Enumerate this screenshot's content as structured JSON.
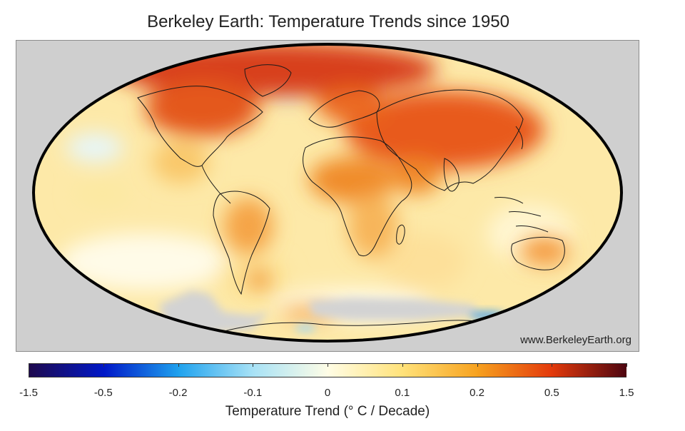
{
  "title": "Berkeley Earth: Temperature Trends since 1950",
  "credit": "www.BerkeleyEarth.org",
  "colorbar": {
    "label": "Temperature Trend (° C / Decade)",
    "ticks": [
      "-1.5",
      "-0.5",
      "-0.2",
      "-0.1",
      "0",
      "0.1",
      "0.2",
      "0.5",
      "1.5"
    ],
    "segments": [
      {
        "from": "#1e0a4e",
        "to": "#0018c8"
      },
      {
        "from": "#0018c8",
        "to": "#1fa2ee"
      },
      {
        "from": "#1fa2ee",
        "to": "#a8e2f6"
      },
      {
        "from": "#a8e2f6",
        "to": "#fffde6"
      },
      {
        "from": "#fffde6",
        "to": "#ffe27a"
      },
      {
        "from": "#ffe27a",
        "to": "#f7a21f"
      },
      {
        "from": "#f7a21f",
        "to": "#e33a0c"
      },
      {
        "from": "#e33a0c",
        "to": "#4d0510"
      }
    ]
  },
  "map": {
    "projection": "Mollweide",
    "ocean_fill": "#fde9a8",
    "missing_data_color": "#d3d3d3",
    "warming_regions": [
      {
        "name": "Arctic / Greenland",
        "color": "#d8401a"
      },
      {
        "name": "Northern Eurasia",
        "color": "#e35a1a"
      },
      {
        "name": "Sahara / Arabia",
        "color": "#f08c2c"
      },
      {
        "name": "Central South America",
        "color": "#f5a447"
      },
      {
        "name": "Australia",
        "color": "#f49a3e"
      }
    ]
  }
}
